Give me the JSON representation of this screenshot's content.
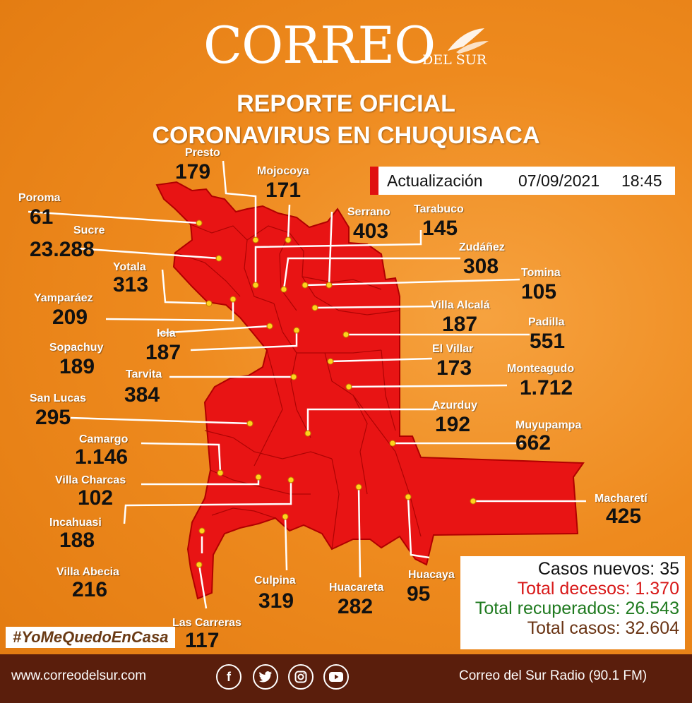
{
  "header": {
    "logo_main": "CORREO",
    "logo_sub": "DEL SUR",
    "title_line1": "REPORTE OFICIAL",
    "title_line2": "CORONAVIRUS EN CHUQUISACA"
  },
  "update": {
    "label": "Actualización",
    "date": "07/09/2021",
    "time": "18:45"
  },
  "municipalities": [
    {
      "name": "Presto",
      "value": "179"
    },
    {
      "name": "Mojocoya",
      "value": "171"
    },
    {
      "name": "Poroma",
      "value": "61"
    },
    {
      "name": "Serrano",
      "value": "403"
    },
    {
      "name": "Tarabuco",
      "value": "145"
    },
    {
      "name": "Sucre",
      "value": "23.288"
    },
    {
      "name": "Zudáñez",
      "value": "308"
    },
    {
      "name": "Yotala",
      "value": "313"
    },
    {
      "name": "Tomina",
      "value": "105"
    },
    {
      "name": "Yamparáez",
      "value": "209"
    },
    {
      "name": "Villa Alcalá",
      "value": "187"
    },
    {
      "name": "Padilla",
      "value": "551"
    },
    {
      "name": "Icla",
      "value": "187"
    },
    {
      "name": "Sopachuy",
      "value": "189"
    },
    {
      "name": "El Villar",
      "value": "173"
    },
    {
      "name": "Monteagudo",
      "value": "1.712"
    },
    {
      "name": "Tarvita",
      "value": "384"
    },
    {
      "name": "San Lucas",
      "value": "295"
    },
    {
      "name": "Azurduy",
      "value": "192"
    },
    {
      "name": "Muyupampa",
      "value": "662"
    },
    {
      "name": "Camargo",
      "value": "1.146"
    },
    {
      "name": "Villa Charcas",
      "value": "102"
    },
    {
      "name": "Macharetí",
      "value": "425"
    },
    {
      "name": "Incahuasi",
      "value": "188"
    },
    {
      "name": "Villa Abecia",
      "value": "216"
    },
    {
      "name": "Culpina",
      "value": "319"
    },
    {
      "name": "Huacareta",
      "value": "282"
    },
    {
      "name": "Huacaya",
      "value": "95"
    },
    {
      "name": "Las Carreras",
      "value": "117"
    }
  ],
  "totals": {
    "new_cases": "Casos nuevos: 35",
    "deaths": "Total decesos: 1.370",
    "recovered": "Total recuperados: 26.543",
    "total": "Total casos: 32.604",
    "colors": {
      "new": "#111111",
      "deaths": "#d81818",
      "recovered": "#1f7a1f",
      "total": "#6a3414"
    }
  },
  "hashtag": "#YoMeQuedoEnCasa",
  "footer": {
    "website": "www.correodelsur.com",
    "radio": "Correo del Sur Radio (90.1 FM)",
    "social_icons": [
      "facebook-icon",
      "twitter-icon",
      "instagram-icon",
      "youtube-icon"
    ]
  }
}
